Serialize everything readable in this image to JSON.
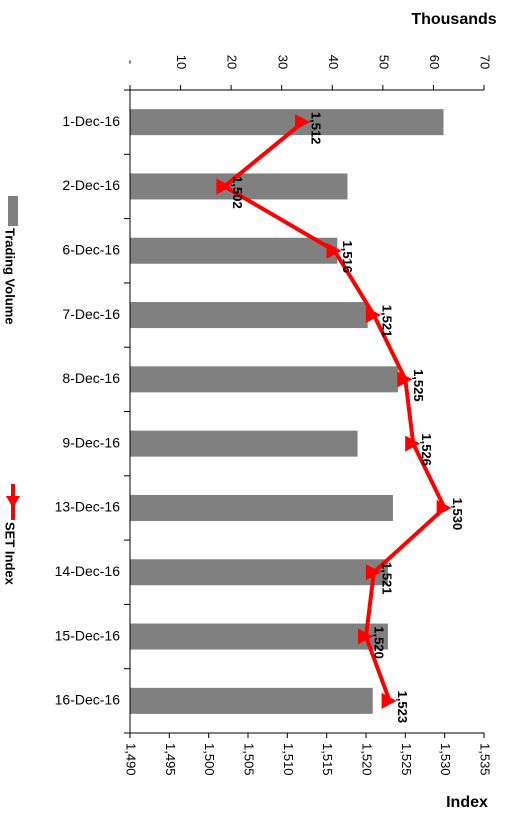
{
  "chart_data": {
    "type": "bar+line",
    "orientation": "rotated-90",
    "categories": [
      "1-Dec-16",
      "2-Dec-16",
      "6-Dec-16",
      "7-Dec-16",
      "8-Dec-16",
      "9-Dec-16",
      "13-Dec-16",
      "14-Dec-16",
      "15-Dec-16",
      "16-Dec-16"
    ],
    "series": [
      {
        "name": "Trading Volume",
        "kind": "bar",
        "axis": "volume",
        "color": "#808080",
        "values": [
          62,
          43,
          41,
          47,
          53,
          45,
          52,
          51,
          51,
          48
        ]
      },
      {
        "name": "SET Index",
        "kind": "line",
        "axis": "index",
        "color": "#ff0000",
        "values": [
          1512,
          1502,
          1516,
          1521,
          1525,
          1526,
          1530,
          1521,
          1520,
          1523
        ],
        "labels": [
          "1,512",
          "1,502",
          "1,516",
          "1,521",
          "1,525",
          "1,526",
          "1,530",
          "1,521",
          "1,520",
          "1,523"
        ]
      }
    ],
    "volume_axis": {
      "title": "Thousands",
      "range": [
        0,
        70
      ],
      "ticks": [
        0,
        10,
        20,
        30,
        40,
        50,
        60,
        70
      ],
      "tick_labels": [
        "-",
        "10",
        "20",
        "30",
        "40",
        "50",
        "60",
        "70"
      ]
    },
    "index_axis": {
      "title": "Index",
      "range": [
        1490,
        1535
      ],
      "ticks": [
        1490,
        1495,
        1500,
        1505,
        1510,
        1515,
        1520,
        1525,
        1530,
        1535
      ],
      "tick_labels": [
        "1,490",
        "1,495",
        "1,500",
        "1,505",
        "1,510",
        "1,515",
        "1,520",
        "1,525",
        "1,530",
        "1,535"
      ]
    },
    "legend": {
      "placement": "left",
      "entries": [
        "Trading Volume",
        "SET Index"
      ]
    },
    "grid": false
  }
}
